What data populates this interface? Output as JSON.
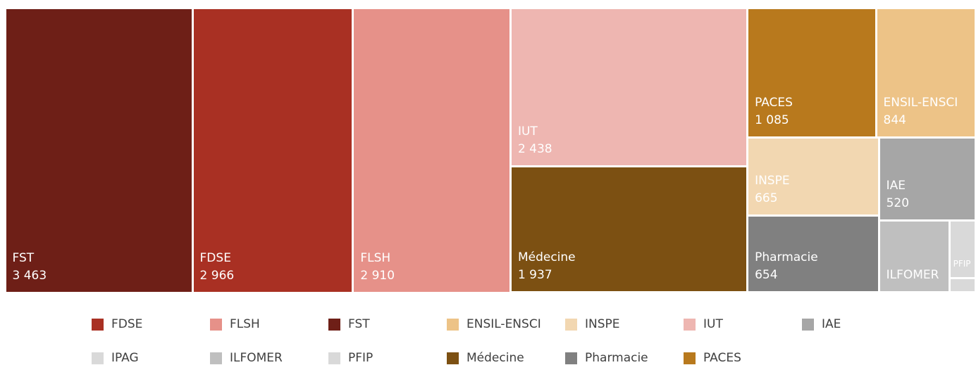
{
  "chart_data": {
    "type": "treemap",
    "categories": [
      "FDSE",
      "FLSH",
      "FST",
      "ENSIL-ENSCI",
      "INSPE",
      "IUT",
      "IAE",
      "IPAG",
      "ILFOMER",
      "PFIP",
      "Médecine",
      "Pharmacie",
      "PACES"
    ],
    "values": [
      2966,
      2910,
      3463,
      844,
      665,
      2438,
      520,
      25,
      330,
      100,
      1937,
      654,
      1085
    ],
    "value_labels": [
      "2 966",
      "2 910",
      "3 463",
      "844",
      "665",
      "2 438",
      "520",
      null,
      null,
      null,
      "1 937",
      "654",
      "1 085"
    ],
    "colors": [
      "#a93023",
      "#e69189",
      "#6e1f17",
      "#edc387",
      "#f2d7b1",
      "#eeb6b1",
      "#a6a6a6",
      "#d9d9d9",
      "#bfbfbf",
      "#d9d9d9",
      "#7c5012",
      "#808080",
      "#b8791d"
    ],
    "legend": "bottom"
  }
}
